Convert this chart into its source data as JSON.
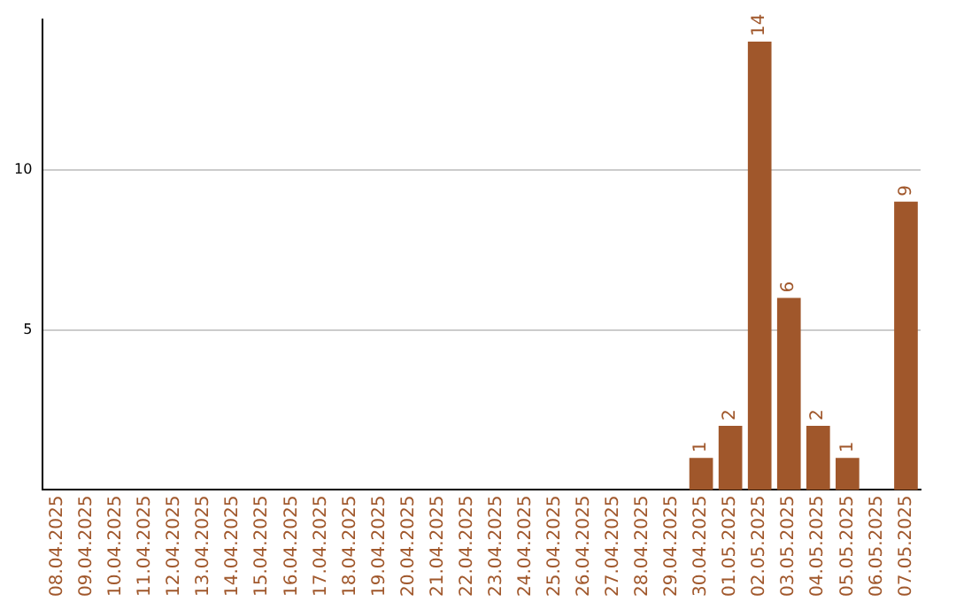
{
  "chart_data": {
    "type": "bar",
    "categories": [
      "08.04.2025",
      "09.04.2025",
      "10.04.2025",
      "11.04.2025",
      "12.04.2025",
      "13.04.2025",
      "14.04.2025",
      "15.04.2025",
      "16.04.2025",
      "17.04.2025",
      "18.04.2025",
      "19.04.2025",
      "20.04.2025",
      "21.04.2025",
      "22.04.2025",
      "23.04.2025",
      "24.04.2025",
      "25.04.2025",
      "26.04.2025",
      "27.04.2025",
      "28.04.2025",
      "29.04.2025",
      "30.04.2025",
      "01.05.2025",
      "02.05.2025",
      "03.05.2025",
      "04.05.2025",
      "05.05.2025",
      "06.05.2025",
      "07.05.2025"
    ],
    "values": [
      0,
      0,
      0,
      0,
      0,
      0,
      0,
      0,
      0,
      0,
      0,
      0,
      0,
      0,
      0,
      0,
      0,
      0,
      0,
      0,
      0,
      0,
      1,
      2,
      14,
      6,
      2,
      1,
      0,
      9
    ],
    "value_labels": [
      null,
      null,
      null,
      null,
      null,
      null,
      null,
      null,
      null,
      null,
      null,
      null,
      null,
      null,
      null,
      null,
      null,
      null,
      null,
      null,
      null,
      null,
      "1",
      "2",
      "14",
      "6",
      "2",
      "1",
      null,
      "9"
    ],
    "color": "#a0572b",
    "ylim": [
      0,
      14.7
    ],
    "yticks": [
      5,
      10
    ],
    "grid": "y"
  }
}
